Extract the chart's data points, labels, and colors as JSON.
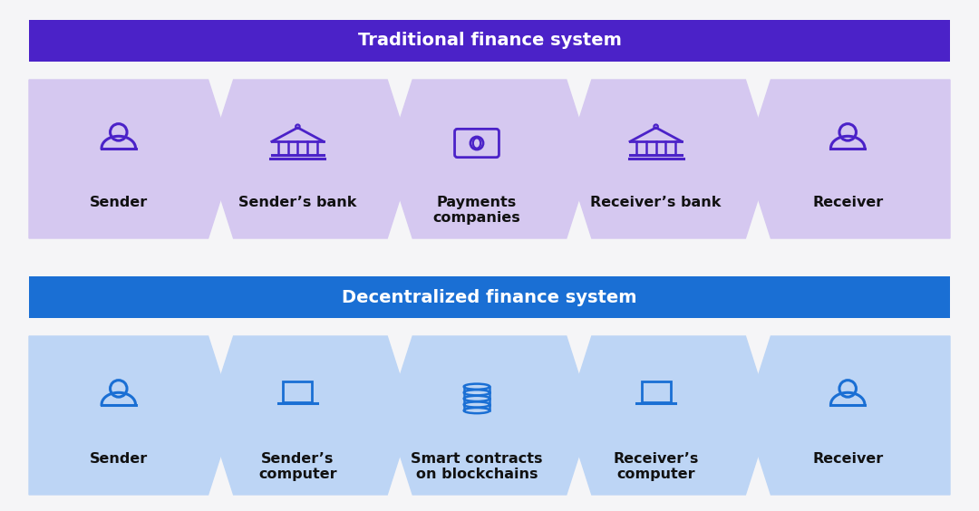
{
  "bg_color": "#f5f5f7",
  "trad_header_color": "#4b22c8",
  "defi_header_color": "#1a6fd4",
  "trad_box_color": "#d5c8f0",
  "defi_box_color": "#bdd5f5",
  "trad_icon_color": "#4b22c8",
  "defi_icon_color": "#1a6fd4",
  "header_text_color": "#ffffff",
  "label_text_color": "#111111",
  "trad_title": "Traditional finance system",
  "defi_title": "Decentralized finance system",
  "trad_labels": [
    "Sender",
    "Sender’s bank",
    "Payments\ncompanies",
    "Receiver’s bank",
    "Receiver"
  ],
  "defi_labels": [
    "Sender",
    "Sender’s\ncomputer",
    "Smart contracts\non blockchains",
    "Receiver’s\ncomputer",
    "Receiver"
  ]
}
